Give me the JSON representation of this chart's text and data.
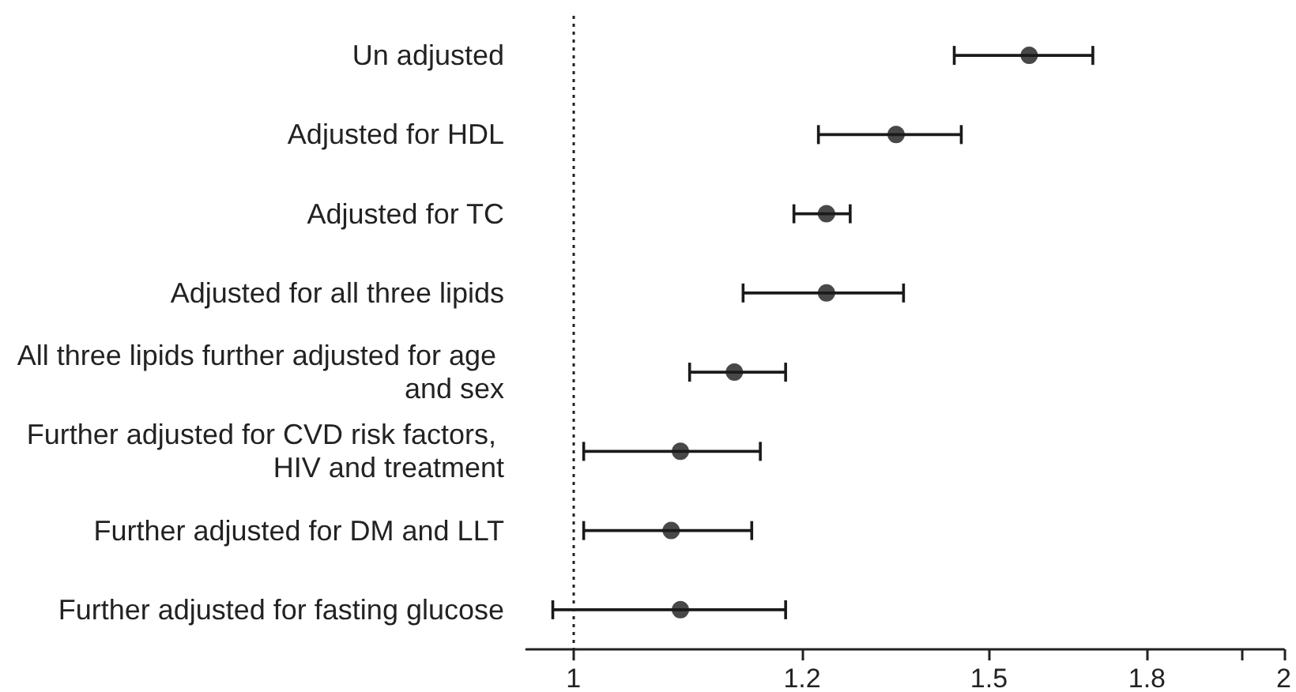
{
  "chart_data": {
    "type": "scatter",
    "orientation": "horizontal",
    "categories": [
      "Un adjusted",
      "Adjusted for HDL",
      "Adjusted for TC",
      "Adjusted for all three lipids",
      "All three lipids further adjusted for age and sex",
      "Further adjusted for CVD risk factors, HIV and treatment",
      "Further adjusted for DM and LLT",
      "Further adjusted for fasting glucose"
    ],
    "values": [
      1.56,
      1.37,
      1.28,
      1.28,
      1.17,
      1.11,
      1.1,
      1.11
    ],
    "errors": [
      [
        1.45,
        1.66
      ],
      [
        1.27,
        1.46
      ],
      [
        1.24,
        1.31
      ],
      [
        1.18,
        1.38
      ],
      [
        1.12,
        1.23
      ],
      [
        1.01,
        1.2
      ],
      [
        1.01,
        1.19
      ],
      [
        0.98,
        1.23
      ]
    ],
    "color": "#1a1a1a",
    "marker": "circle",
    "log": "x",
    "grid": false,
    "xlim": [
      0.955,
      2
    ],
    "xticks": [
      1,
      {
        "value": 1.25,
        "label": "1.2"
      },
      1.5,
      {
        "value": 1.75,
        "label": "1.8"
      },
      {
        "value": 1.92,
        "label": null
      },
      2
    ],
    "ref_lines": [
      {
        "axis": "x",
        "value": 1,
        "line_style": "dotted",
        "color": "#222222"
      }
    ]
  }
}
